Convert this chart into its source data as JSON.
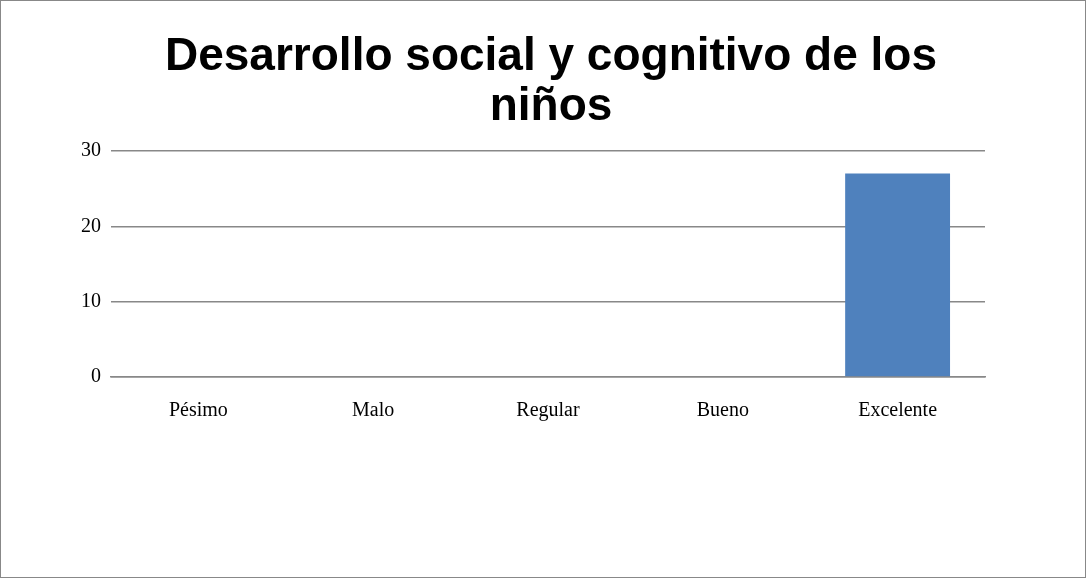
{
  "chart_data": {
    "type": "bar",
    "title": "Desarrollo  social y cognitivo de los niños",
    "categories": [
      "Pésimo",
      "Malo",
      "Regular",
      "Bueno",
      "Excelente"
    ],
    "values": [
      0,
      0,
      0,
      0,
      27
    ],
    "color": "#4f81bd",
    "ylim": [
      0,
      30
    ],
    "yticks": [
      0,
      10,
      20,
      30
    ],
    "grid": "y",
    "legend": false
  }
}
